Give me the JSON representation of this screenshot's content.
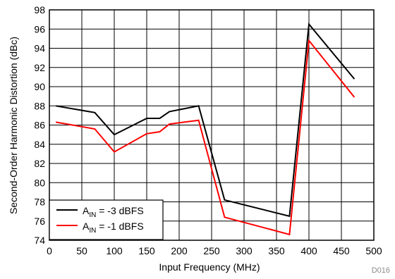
{
  "chart_data": {
    "type": "line",
    "xlabel": "Input Frequency (MHz)",
    "ylabel": "Second-Order Harmonic Distortion (dBc)",
    "xlim": [
      0,
      500
    ],
    "ylim": [
      74,
      98
    ],
    "x_ticks": [
      0,
      50,
      100,
      150,
      200,
      250,
      300,
      350,
      400,
      450,
      500
    ],
    "y_ticks": [
      74,
      76,
      78,
      80,
      82,
      84,
      86,
      88,
      90,
      92,
      94,
      96,
      98
    ],
    "grid": true,
    "legend_position": "bottom-left",
    "series": [
      {
        "name_main": "A",
        "name_sub": "IN",
        "name_rest": " = -3 dBFS",
        "color": "#000000",
        "x": [
          10,
          70,
          100,
          150,
          170,
          185,
          230,
          270,
          370,
          400,
          470
        ],
        "y": [
          88.0,
          87.3,
          85.0,
          86.7,
          86.7,
          87.4,
          88.0,
          78.2,
          76.5,
          96.5,
          90.8
        ]
      },
      {
        "name_main": "A",
        "name_sub": "IN",
        "name_rest": " = -1 dBFS",
        "color": "#ff0000",
        "x": [
          10,
          70,
          100,
          150,
          170,
          185,
          230,
          270,
          370,
          400,
          470
        ],
        "y": [
          86.3,
          85.6,
          83.2,
          85.1,
          85.3,
          86.1,
          86.5,
          76.4,
          74.6,
          94.8,
          88.9
        ]
      }
    ],
    "figure_id": "D016"
  }
}
